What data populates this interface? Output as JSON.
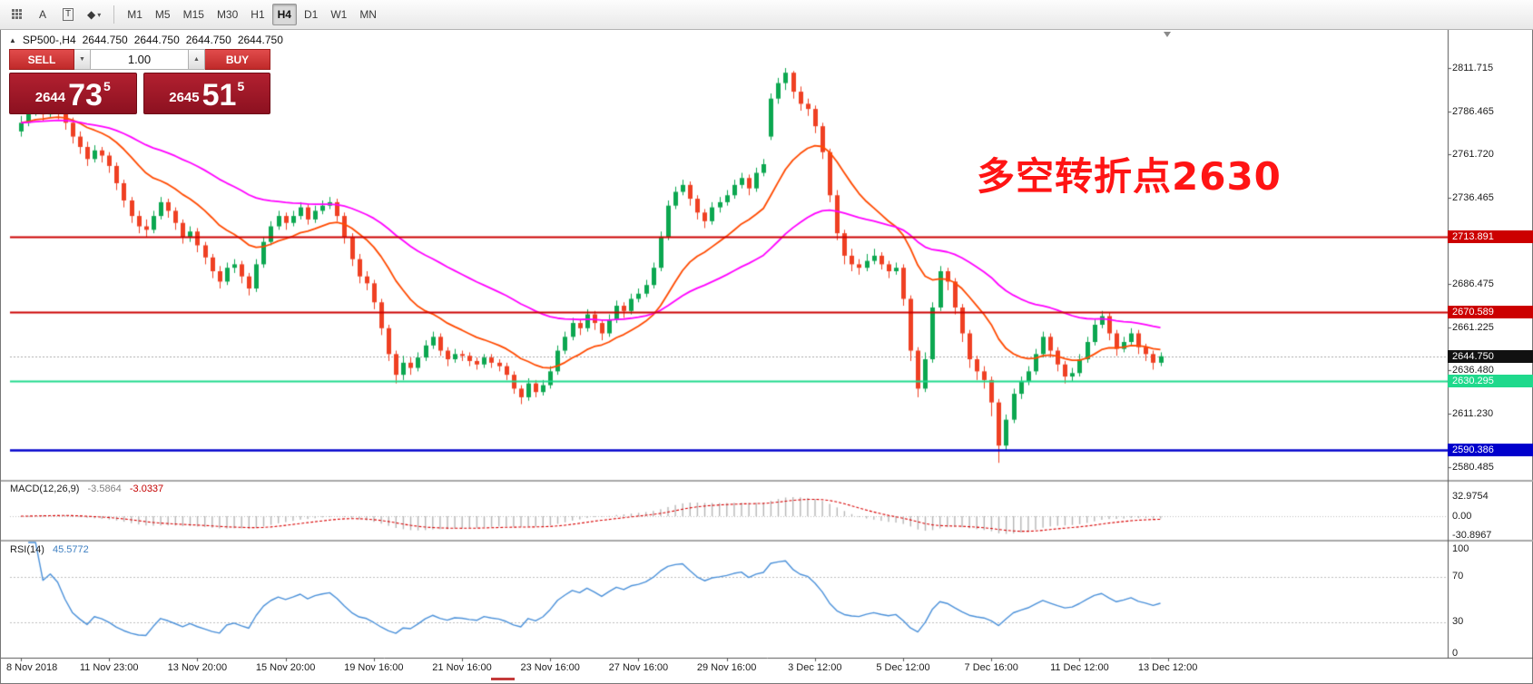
{
  "toolbar": {
    "icons": [
      {
        "name": "chart-grid-icon",
        "type": "dots"
      },
      {
        "name": "text-label-icon",
        "type": "glyph",
        "glyph": "A"
      },
      {
        "name": "text-box-icon",
        "type": "boxed",
        "glyph": "T"
      },
      {
        "name": "shapes-icon",
        "type": "caret",
        "glyph": "◆"
      }
    ],
    "timeframes": [
      "M1",
      "M5",
      "M15",
      "M30",
      "H1",
      "H4",
      "D1",
      "W1",
      "MN"
    ],
    "active_timeframe": "H4"
  },
  "chart_header": {
    "symbol": "SP500-,H4",
    "open": "2644.750",
    "high": "2644.750",
    "low": "2644.750",
    "close": "2644.750"
  },
  "trade_panel": {
    "sell_label": "SELL",
    "buy_label": "BUY",
    "volume": "1.00",
    "sell_price": {
      "prefix": "2644",
      "big": "73",
      "sup": "5"
    },
    "buy_price": {
      "prefix": "2645",
      "big": "51",
      "sup": "5"
    }
  },
  "annotation": {
    "text": "多空转折点2630",
    "color": "#ff1414"
  },
  "macd_panel": {
    "label": "MACD(12,26,9)",
    "value_main": "-3.5864",
    "value_signal": "-3.0337",
    "axis_labels": [
      "32.9754",
      "0.00",
      "-30.8967"
    ]
  },
  "rsi_panel": {
    "label": "RSI(14)",
    "value": "45.5772",
    "axis_labels": [
      "100",
      "70",
      "30",
      "0"
    ]
  },
  "colors": {
    "bull": "#0ca750",
    "bear": "#ef4023",
    "macd_hist": "#b6b6b6",
    "macd_signal": "#d80000",
    "rsi_line": "#4a90d9",
    "current_badge": "#111111",
    "bid_line": "#a8a8a8"
  },
  "chart_data": {
    "type": "candlestick",
    "symbol": "SP500-",
    "timeframe": "H4",
    "current_price": 2644.75,
    "ylim": [
      2580.485,
      2811.715
    ],
    "y_ticks": [
      2811.715,
      2786.465,
      2761.72,
      2736.465,
      2686.475,
      2661.225,
      2636.48,
      2611.23,
      2580.485
    ],
    "x_labels": [
      "8 Nov 2018",
      "11 Nov 23:00",
      "13 Nov 20:00",
      "15 Nov 20:00",
      "19 Nov 16:00",
      "21 Nov 16:00",
      "23 Nov 16:00",
      "27 Nov 16:00",
      "29 Nov 16:00",
      "3 Dec 12:00",
      "5 Dec 12:00",
      "7 Dec 16:00",
      "11 Dec 12:00",
      "13 Dec 12:00"
    ],
    "x_label_stride_bars": 12,
    "hlines": [
      {
        "price": 2713.891,
        "color": "#cc0000",
        "width": 2,
        "label": "2713.891"
      },
      {
        "price": 2670.589,
        "color": "#cc0000",
        "width": 2,
        "label": "2670.589"
      },
      {
        "price": 2630.295,
        "color": "#1fd98c",
        "width": 2,
        "label": "2630.295"
      },
      {
        "price": 2590.386,
        "color": "#0000cc",
        "width": 2.5,
        "label": "2590.386"
      }
    ],
    "moving_averages": [
      {
        "name": "fast-ma",
        "period": 16,
        "color": "#ff4a00"
      },
      {
        "name": "slow-ma",
        "period": 45,
        "color": "#ff00ff"
      }
    ],
    "indicators": [
      {
        "name": "MACD",
        "params": [
          12,
          26,
          9
        ],
        "current": [
          -3.5864,
          -3.0337
        ],
        "axis": [
          32.9754,
          0,
          -30.8967
        ]
      },
      {
        "name": "RSI",
        "params": [
          14
        ],
        "current": 45.5772,
        "levels": [
          70,
          30
        ],
        "range": [
          0,
          100
        ]
      }
    ],
    "candle_format": [
      "open",
      "high",
      "low",
      "close"
    ],
    "candles": [
      [
        2775,
        2784,
        2772,
        2780
      ],
      [
        2780,
        2792,
        2778,
        2786
      ],
      [
        2786,
        2794,
        2784,
        2790
      ],
      [
        2790,
        2792,
        2781,
        2785
      ],
      [
        2785,
        2791,
        2783,
        2788
      ],
      [
        2788,
        2790,
        2782,
        2786
      ],
      [
        2786,
        2788,
        2776,
        2780
      ],
      [
        2780,
        2783,
        2768,
        2772
      ],
      [
        2772,
        2775,
        2762,
        2766
      ],
      [
        2766,
        2769,
        2755,
        2759
      ],
      [
        2759,
        2767,
        2757,
        2764
      ],
      [
        2764,
        2766,
        2757,
        2761
      ],
      [
        2761,
        2763,
        2751,
        2755
      ],
      [
        2755,
        2757,
        2741,
        2745
      ],
      [
        2745,
        2747,
        2731,
        2735
      ],
      [
        2735,
        2737,
        2722,
        2726
      ],
      [
        2726,
        2729,
        2716,
        2720
      ],
      [
        2720,
        2724,
        2714,
        2718
      ],
      [
        2718,
        2729,
        2716,
        2726
      ],
      [
        2726,
        2737,
        2724,
        2734
      ],
      [
        2734,
        2736,
        2725,
        2729
      ],
      [
        2729,
        2731,
        2718,
        2722
      ],
      [
        2722,
        2724,
        2710,
        2714
      ],
      [
        2714,
        2720,
        2711,
        2717
      ],
      [
        2717,
        2719,
        2705,
        2709
      ],
      [
        2709,
        2711,
        2698,
        2702
      ],
      [
        2702,
        2704,
        2690,
        2694
      ],
      [
        2694,
        2697,
        2684,
        2688
      ],
      [
        2688,
        2699,
        2686,
        2696
      ],
      [
        2696,
        2701,
        2693,
        2698
      ],
      [
        2698,
        2700,
        2687,
        2691
      ],
      [
        2691,
        2693,
        2680,
        2684
      ],
      [
        2684,
        2701,
        2682,
        2698
      ],
      [
        2698,
        2714,
        2696,
        2711
      ],
      [
        2711,
        2723,
        2709,
        2720
      ],
      [
        2720,
        2729,
        2718,
        2726
      ],
      [
        2726,
        2728,
        2718,
        2722
      ],
      [
        2722,
        2729,
        2720,
        2726
      ],
      [
        2726,
        2734,
        2724,
        2731
      ],
      [
        2731,
        2733,
        2721,
        2724
      ],
      [
        2724,
        2732,
        2722,
        2729
      ],
      [
        2729,
        2735,
        2727,
        2732
      ],
      [
        2732,
        2737,
        2730,
        2734
      ],
      [
        2734,
        2736,
        2723,
        2726
      ],
      [
        2726,
        2728,
        2710,
        2714
      ],
      [
        2714,
        2716,
        2697,
        2701
      ],
      [
        2701,
        2704,
        2687,
        2691
      ],
      [
        2691,
        2694,
        2683,
        2687
      ],
      [
        2687,
        2689,
        2672,
        2676
      ],
      [
        2676,
        2678,
        2657,
        2661
      ],
      [
        2661,
        2663,
        2642,
        2646
      ],
      [
        2646,
        2648,
        2629,
        2634
      ],
      [
        2634,
        2645,
        2631,
        2641
      ],
      [
        2641,
        2644,
        2634,
        2638
      ],
      [
        2638,
        2647,
        2636,
        2644
      ],
      [
        2644,
        2654,
        2642,
        2651
      ],
      [
        2651,
        2659,
        2649,
        2656
      ],
      [
        2656,
        2658,
        2645,
        2648
      ],
      [
        2648,
        2650,
        2639,
        2643
      ],
      [
        2643,
        2649,
        2641,
        2646
      ],
      [
        2646,
        2648,
        2642,
        2645
      ],
      [
        2645,
        2647,
        2639,
        2642
      ],
      [
        2642,
        2644,
        2637,
        2640
      ],
      [
        2640,
        2646,
        2638,
        2644
      ],
      [
        2644,
        2646,
        2638,
        2641
      ],
      [
        2641,
        2643,
        2636,
        2639
      ],
      [
        2639,
        2641,
        2631,
        2634
      ],
      [
        2634,
        2636,
        2623,
        2626
      ],
      [
        2626,
        2628,
        2617,
        2621
      ],
      [
        2621,
        2632,
        2619,
        2629
      ],
      [
        2629,
        2631,
        2621,
        2624
      ],
      [
        2624,
        2631,
        2622,
        2628
      ],
      [
        2628,
        2639,
        2626,
        2636
      ],
      [
        2636,
        2651,
        2634,
        2648
      ],
      [
        2648,
        2659,
        2646,
        2656
      ],
      [
        2656,
        2667,
        2654,
        2664
      ],
      [
        2664,
        2666,
        2657,
        2661
      ],
      [
        2661,
        2672,
        2659,
        2669
      ],
      [
        2669,
        2671,
        2660,
        2664
      ],
      [
        2664,
        2666,
        2654,
        2658
      ],
      [
        2658,
        2669,
        2656,
        2666
      ],
      [
        2666,
        2677,
        2664,
        2674
      ],
      [
        2674,
        2676,
        2667,
        2671
      ],
      [
        2671,
        2681,
        2669,
        2678
      ],
      [
        2678,
        2684,
        2676,
        2681
      ],
      [
        2681,
        2689,
        2679,
        2686
      ],
      [
        2686,
        2699,
        2684,
        2696
      ],
      [
        2696,
        2717,
        2694,
        2714
      ],
      [
        2714,
        2735,
        2712,
        2732
      ],
      [
        2732,
        2743,
        2730,
        2740
      ],
      [
        2740,
        2747,
        2738,
        2744
      ],
      [
        2744,
        2746,
        2732,
        2736
      ],
      [
        2736,
        2738,
        2724,
        2728
      ],
      [
        2728,
        2730,
        2719,
        2723
      ],
      [
        2723,
        2734,
        2721,
        2731
      ],
      [
        2731,
        2737,
        2728,
        2734
      ],
      [
        2734,
        2741,
        2732,
        2738
      ],
      [
        2738,
        2747,
        2736,
        2744
      ],
      [
        2744,
        2751,
        2742,
        2748
      ],
      [
        2748,
        2750,
        2738,
        2742
      ],
      [
        2742,
        2754,
        2740,
        2751
      ],
      [
        2751,
        2759,
        2749,
        2756
      ],
      [
        2772,
        2797,
        2770,
        2794
      ],
      [
        2794,
        2806,
        2791,
        2803
      ],
      [
        2803,
        2811.7,
        2799,
        2809
      ],
      [
        2809,
        2810,
        2794,
        2798
      ],
      [
        2798,
        2801,
        2787,
        2791
      ],
      [
        2791,
        2794,
        2784,
        2788
      ],
      [
        2788,
        2790,
        2774,
        2778
      ],
      [
        2778,
        2780,
        2759,
        2763
      ],
      [
        2763,
        2765,
        2734,
        2738
      ],
      [
        2738,
        2741,
        2712,
        2716
      ],
      [
        2716,
        2718,
        2698,
        2703
      ],
      [
        2703,
        2707,
        2694,
        2698
      ],
      [
        2698,
        2701,
        2692,
        2696
      ],
      [
        2696,
        2704,
        2694,
        2700
      ],
      [
        2700,
        2707,
        2698,
        2703
      ],
      [
        2703,
        2705,
        2695,
        2698
      ],
      [
        2698,
        2700,
        2690,
        2694
      ],
      [
        2694,
        2699,
        2692,
        2696
      ],
      [
        2696,
        2698,
        2674,
        2678
      ],
      [
        2678,
        2680,
        2642,
        2648
      ],
      [
        2648,
        2650,
        2621,
        2626
      ],
      [
        2626,
        2647,
        2624,
        2643
      ],
      [
        2643,
        2676,
        2641,
        2673
      ],
      [
        2673,
        2697,
        2671,
        2694
      ],
      [
        2694,
        2696,
        2683,
        2688
      ],
      [
        2688,
        2690,
        2669,
        2673
      ],
      [
        2673,
        2675,
        2653,
        2658
      ],
      [
        2658,
        2660,
        2638,
        2643
      ],
      [
        2643,
        2645,
        2631,
        2636
      ],
      [
        2636,
        2639,
        2626,
        2631
      ],
      [
        2631,
        2633,
        2610,
        2618
      ],
      [
        2618,
        2620,
        2583,
        2593
      ],
      [
        2593,
        2611,
        2590,
        2608
      ],
      [
        2608,
        2626,
        2606,
        2623
      ],
      [
        2623,
        2633,
        2620,
        2630
      ],
      [
        2630,
        2639,
        2628,
        2636
      ],
      [
        2636,
        2649,
        2634,
        2646
      ],
      [
        2646,
        2659,
        2644,
        2656
      ],
      [
        2656,
        2658,
        2644,
        2648
      ],
      [
        2648,
        2650,
        2636,
        2640
      ],
      [
        2640,
        2642,
        2629,
        2633
      ],
      [
        2633,
        2638,
        2630,
        2635
      ],
      [
        2635,
        2646,
        2633,
        2643
      ],
      [
        2643,
        2656,
        2641,
        2653
      ],
      [
        2653,
        2666,
        2651,
        2663
      ],
      [
        2663,
        2671,
        2661,
        2668
      ],
      [
        2668,
        2670,
        2654,
        2658
      ],
      [
        2658,
        2660,
        2645,
        2649
      ],
      [
        2649,
        2656,
        2647,
        2653
      ],
      [
        2653,
        2661,
        2651,
        2658
      ],
      [
        2658,
        2660,
        2646,
        2650
      ],
      [
        2650,
        2652,
        2642,
        2646
      ],
      [
        2646,
        2648,
        2637,
        2641
      ],
      [
        2641,
        2647,
        2639,
        2644.75
      ]
    ]
  }
}
